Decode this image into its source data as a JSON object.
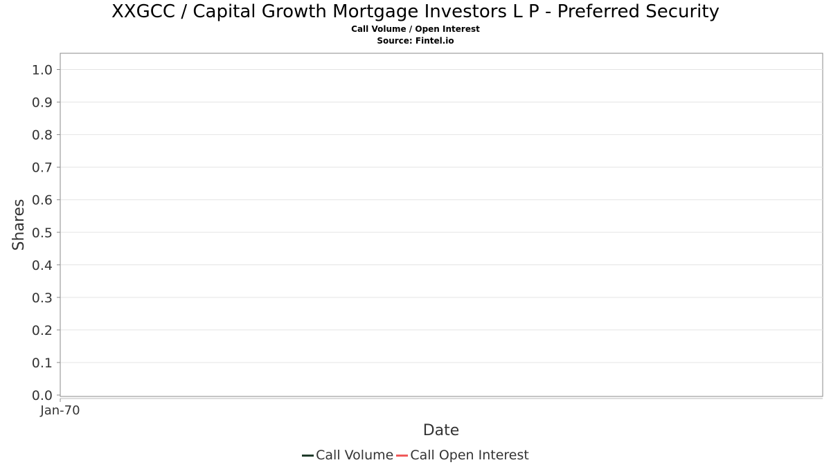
{
  "chart_data": {
    "type": "line",
    "title": "XXGCC / Capital Growth Mortgage Investors L P - Preferred Security",
    "subtitle": "Call Volume / Open Interest",
    "source": "Source: Fintel.io",
    "xlabel": "Date",
    "ylabel": "Shares",
    "x_tick_labels": [
      "Jan-70"
    ],
    "y_tick_labels": [
      "0.0",
      "0.1",
      "0.2",
      "0.3",
      "0.4",
      "0.5",
      "0.6",
      "0.7",
      "0.8",
      "0.9",
      "1.0"
    ],
    "ylim": [
      0,
      1.05
    ],
    "grid": true,
    "legend_position": "bottom",
    "series": [
      {
        "name": "Call Volume",
        "color": "#1f3b2a",
        "values": []
      },
      {
        "name": "Call Open Interest",
        "color": "#f05a5a",
        "values": []
      }
    ]
  }
}
